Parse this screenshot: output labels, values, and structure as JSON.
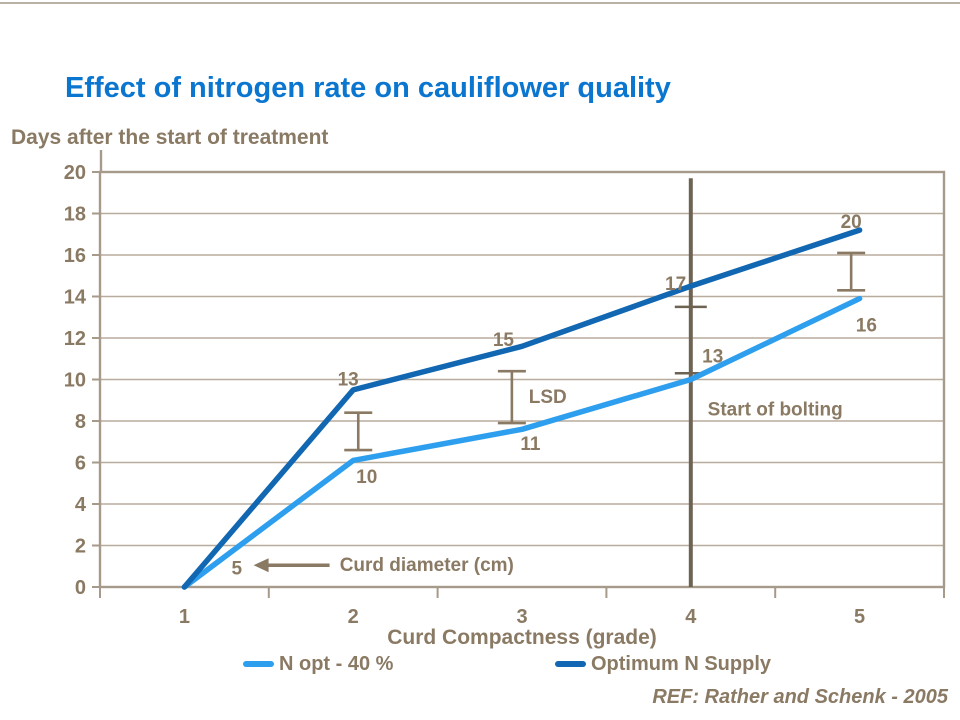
{
  "page": {
    "ref": "REF: Rather and Schenk - 2005"
  },
  "colors": {
    "title_blue": "#0b76cf",
    "text_brown": "#8a7a64",
    "grid": "#b8ac9e",
    "border": "#a69a8a",
    "bolting_line": "#6e6353",
    "error_bar": "#8a7a64",
    "light_blue": "#2e9fee",
    "dark_blue": "#1167b1"
  },
  "chart_data": {
    "type": "line",
    "title": "Effect of nitrogen rate on cauliflower quality",
    "xlabel": "Curd Compactness (grade)",
    "ylabel": "Days after the start of treatment",
    "x_categories": [
      "1",
      "2",
      "3",
      "4",
      "5"
    ],
    "y_tick_labels": [
      "0",
      "2",
      "4",
      "6",
      "8",
      "10",
      "12",
      "14",
      "16",
      "18",
      "20"
    ],
    "ylim": [
      0,
      20
    ],
    "ytick_step": 2,
    "grid": "horizontal",
    "legend_position": "bottom",
    "series": [
      {
        "name": "N opt - 40 %",
        "color_key": "light_blue",
        "x": [
          1,
          2,
          3,
          4,
          5
        ],
        "values": [
          0,
          6.1,
          7.6,
          10.0,
          13.9
        ],
        "curd_diameter_labels": [
          {
            "text": "5",
            "grade": 1.31,
            "day": 0.9
          },
          {
            "text": "10",
            "grade": 2.08,
            "day": 5.3
          },
          {
            "text": "11",
            "grade": 3.05,
            "day": 6.9
          },
          {
            "text": "13",
            "grade": 4.13,
            "day": 11.1
          },
          {
            "text": "16",
            "grade": 5.04,
            "day": 12.6
          }
        ]
      },
      {
        "name": "Optimum N Supply",
        "color_key": "dark_blue",
        "x": [
          1,
          2,
          3,
          4,
          5
        ],
        "values": [
          0,
          9.5,
          11.6,
          14.5,
          17.2
        ],
        "curd_diameter_labels": [
          {
            "text": "13",
            "grade": 1.97,
            "day": 10.0
          },
          {
            "text": "15",
            "grade": 2.89,
            "day": 11.9
          },
          {
            "text": "17",
            "grade": 3.91,
            "day": 14.6
          },
          {
            "text": "20",
            "grade": 4.95,
            "day": 17.6
          }
        ]
      }
    ],
    "error_bars": [
      {
        "grade": 2.03,
        "day_low": 6.6,
        "day_high": 8.4
      },
      {
        "grade": 2.94,
        "day_low": 7.9,
        "day_high": 10.4
      },
      {
        "grade": 4.95,
        "day_low": 14.3,
        "day_high": 16.1
      }
    ],
    "annotations": {
      "lsd": {
        "text": "LSD",
        "grade": 3.04,
        "day": 9.2
      },
      "start_of_bolting": {
        "text": "Start of bolting",
        "grade": 4.1,
        "day": 8.6,
        "line_grade": 4,
        "line_day_top": 19.7,
        "line_tick_days": [
          13.5,
          10.3
        ]
      },
      "curd_diameter": {
        "text": "Curd diameter (cm)",
        "grade": 1.92,
        "day": 1.05,
        "arrow_from_grade": 1.86,
        "arrow_to_grade": 1.41,
        "arrow_day": 1.05
      }
    }
  }
}
